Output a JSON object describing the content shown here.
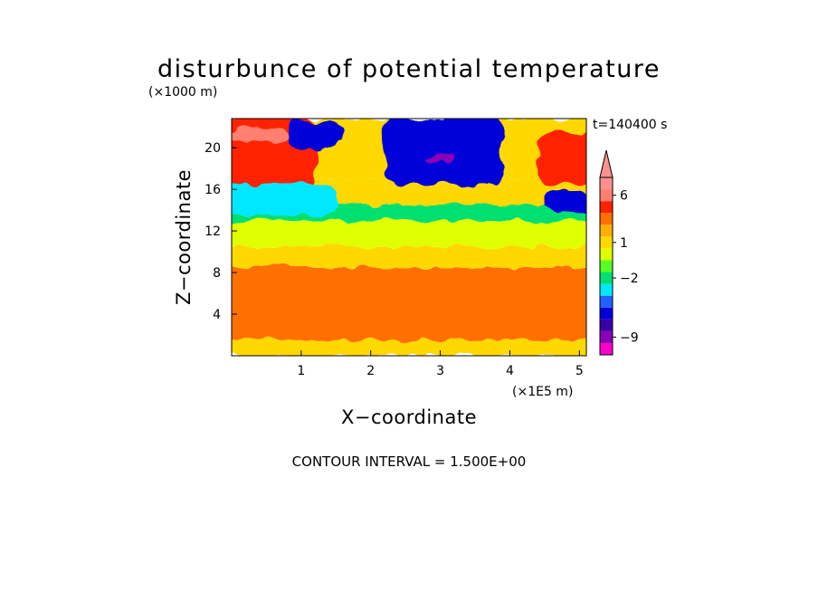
{
  "chart_data": {
    "type": "heatmap",
    "title": "disturbunce of potential temperature",
    "y_scale_label": "(×1000 m)",
    "x_scale_label": "(×1E5 m)",
    "time_label": "t=140400 s",
    "xlabel": "X−coordinate",
    "ylabel": "Z−coordinate",
    "contour_interval_label": "CONTOUR INTERVAL = 1.500E+00",
    "xlim": [
      0,
      5.1
    ],
    "ylim": [
      0,
      22.8
    ],
    "x_ticks": [
      1,
      2,
      3,
      4,
      5
    ],
    "x_tick_labels": [
      "1",
      "2",
      "3",
      "4",
      "5"
    ],
    "y_ticks": [
      4,
      8,
      12,
      16,
      20
    ],
    "y_tick_labels": [
      "4",
      "8",
      "12",
      "16",
      "20"
    ],
    "colorbar": {
      "level_values": [
        -10.5,
        -9,
        -7.5,
        -6,
        -4.5,
        -3,
        -2,
        -1,
        0,
        1,
        2,
        3,
        4.5,
        6,
        7.5
      ],
      "colors": [
        "#ff00cc",
        "#8a00b8",
        "#3a00a8",
        "#0000d8",
        "#2060ff",
        "#00e8ff",
        "#00e070",
        "#58ff20",
        "#e0ff00",
        "#ffd800",
        "#ffb000",
        "#ff7000",
        "#ff2000",
        "#ff8070",
        "#ff9090"
      ],
      "labels": [
        {
          "text": "6",
          "value": 6
        },
        {
          "text": "1",
          "value": 1
        },
        {
          "text": "−2",
          "value": -2
        },
        {
          "text": "−9",
          "value": -9
        }
      ],
      "extend_top_arrow": true
    },
    "field_regions": [
      {
        "x": [
          0,
          5.1
        ],
        "z": [
          0,
          1.5
        ],
        "level": 1
      },
      {
        "x": [
          0,
          5.1
        ],
        "z": [
          1.5,
          8.5
        ],
        "level": 3
      },
      {
        "x": [
          0,
          5.1
        ],
        "z": [
          8.5,
          10.5
        ],
        "level": 1
      },
      {
        "x": [
          0,
          5.1
        ],
        "z": [
          10.5,
          13
        ],
        "level": 0
      },
      {
        "x": [
          0,
          5.1
        ],
        "z": [
          13,
          14.5
        ],
        "level": -2
      },
      {
        "x": [
          0,
          5.1
        ],
        "z": [
          14.5,
          17
        ],
        "level": 1
      },
      {
        "x": [
          0,
          5.1
        ],
        "z": [
          17,
          22.8
        ],
        "level": 1
      },
      {
        "x": [
          0,
          1.1
        ],
        "z": [
          16,
          22.8
        ],
        "level": 4.5
      },
      {
        "x": [
          0.1,
          0.7
        ],
        "z": [
          20.5,
          22
        ],
        "level": 6
      },
      {
        "x": [
          0,
          1.4
        ],
        "z": [
          13.5,
          16.5
        ],
        "level": -3
      },
      {
        "x": [
          0.9,
          1.5
        ],
        "z": [
          20,
          22.5
        ],
        "level": -6
      },
      {
        "x": [
          2.3,
          3.8
        ],
        "z": [
          16.5,
          22.8
        ],
        "level": -6
      },
      {
        "x": [
          2.9,
          3.1
        ],
        "z": [
          18.5,
          19.2
        ],
        "level": -9
      },
      {
        "x": [
          4.5,
          5.1
        ],
        "z": [
          16.5,
          21.5
        ],
        "level": 4.5
      },
      {
        "x": [
          4.6,
          5.1
        ],
        "z": [
          13.8,
          15.8
        ],
        "level": -6
      }
    ]
  }
}
